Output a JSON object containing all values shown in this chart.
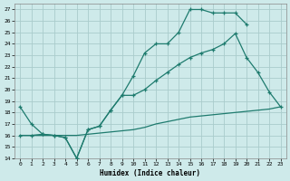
{
  "xlabel": "Humidex (Indice chaleur)",
  "xlim": [
    -0.5,
    23.5
  ],
  "ylim": [
    14,
    27.5
  ],
  "yticks": [
    14,
    15,
    16,
    17,
    18,
    19,
    20,
    21,
    22,
    23,
    24,
    25,
    26,
    27
  ],
  "xticks": [
    0,
    1,
    2,
    3,
    4,
    5,
    6,
    7,
    8,
    9,
    10,
    11,
    12,
    13,
    14,
    15,
    16,
    17,
    18,
    19,
    20,
    21,
    22,
    23
  ],
  "bg_color": "#ceeaea",
  "grid_color": "#aacccc",
  "line_color": "#1e7b6e",
  "lines": [
    {
      "x": [
        0,
        1,
        2,
        3,
        4,
        5,
        6,
        7,
        8,
        9,
        10,
        11,
        12,
        13,
        14,
        15,
        16,
        17,
        18,
        19,
        20,
        21,
        22,
        23
      ],
      "y": [
        18.5,
        17.0,
        16.1,
        16.0,
        15.8,
        14.0,
        16.5,
        16.8,
        18.2,
        19.5,
        21.2,
        23.2,
        24.0,
        24.0,
        25.0,
        27.0,
        27.0,
        26.7,
        26.7,
        26.7,
        25.7,
        null,
        null,
        null
      ],
      "has_marker": true
    },
    {
      "x": [
        0,
        1,
        2,
        3,
        4,
        5,
        6,
        7,
        8,
        9,
        10,
        11,
        12,
        13,
        14,
        15,
        16,
        17,
        18,
        19,
        20,
        21,
        22,
        23
      ],
      "y": [
        16.0,
        16.0,
        16.1,
        16.0,
        15.8,
        14.0,
        16.5,
        16.8,
        18.2,
        19.5,
        19.5,
        20.0,
        20.8,
        21.5,
        22.2,
        22.8,
        23.2,
        23.5,
        24.0,
        24.9,
        22.8,
        21.5,
        19.8,
        18.5
      ],
      "has_marker": true
    },
    {
      "x": [
        0,
        1,
        2,
        3,
        4,
        5,
        6,
        7,
        8,
        9,
        10,
        11,
        12,
        13,
        14,
        15,
        16,
        17,
        18,
        19,
        20,
        21,
        22,
        23
      ],
      "y": [
        16.0,
        16.0,
        16.0,
        16.0,
        16.0,
        16.0,
        16.1,
        16.2,
        16.3,
        16.4,
        16.5,
        16.7,
        17.0,
        17.2,
        17.4,
        17.6,
        17.7,
        17.8,
        17.9,
        18.0,
        18.1,
        18.2,
        18.3,
        18.5
      ],
      "has_marker": false
    }
  ]
}
